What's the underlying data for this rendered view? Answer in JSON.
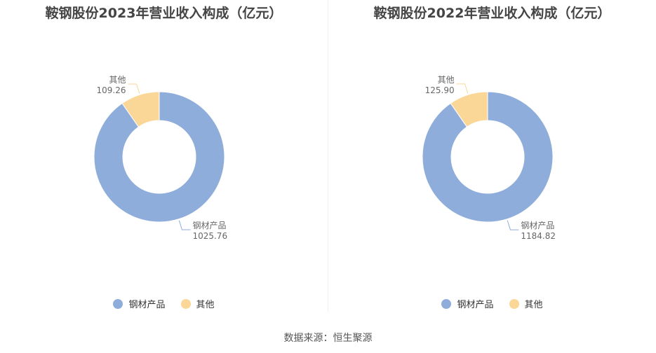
{
  "colors": {
    "steel": "#8fadda",
    "other": "#fbd797",
    "leader": "#999999"
  },
  "source": "数据来源：恒生聚源",
  "chart_data": [
    {
      "type": "pie",
      "title": "鞍钢股份2023年营业收入构成（亿元）",
      "slices": [
        {
          "label": "钢材产品",
          "value": 1025.76,
          "value_text": "1025.76"
        },
        {
          "label": "其他",
          "value": 109.26,
          "value_text": "109.26"
        }
      ],
      "legend": [
        "钢材产品",
        "其他"
      ],
      "legend_position": "bottom"
    },
    {
      "type": "pie",
      "title": "鞍钢股份2022年营业收入构成（亿元）",
      "slices": [
        {
          "label": "钢材产品",
          "value": 1184.82,
          "value_text": "1184.82"
        },
        {
          "label": "其他",
          "value": 125.9,
          "value_text": "125.90"
        }
      ],
      "legend": [
        "钢材产品",
        "其他"
      ],
      "legend_position": "bottom"
    }
  ]
}
